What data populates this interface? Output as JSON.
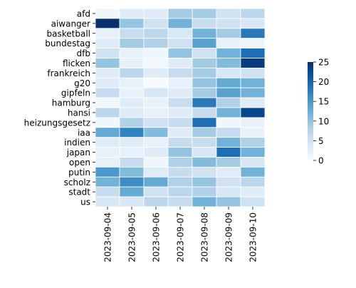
{
  "chart_data": {
    "type": "heatmap",
    "title": "",
    "xlabel": "",
    "ylabel": "",
    "x": [
      "2023-09-04",
      "2023-09-05",
      "2023-09-06",
      "2023-09-07",
      "2023-09-08",
      "2023-09-09",
      "2023-09-10"
    ],
    "y": [
      "afd",
      "aiwanger",
      "basketball",
      "bundestag",
      "dfb",
      "flicken",
      "frankreich",
      "g20",
      "gipfeln",
      "hamburg",
      "hansi",
      "heizungsgesetz",
      "iaa",
      "indien",
      "japan",
      "open",
      "putin",
      "scholz",
      "stadt",
      "us"
    ],
    "values": [
      [
        1,
        3,
        3,
        9,
        9,
        5,
        7
      ],
      [
        25,
        10,
        5,
        12,
        6,
        5,
        4
      ],
      [
        2,
        6,
        7,
        4,
        12,
        9,
        18
      ],
      [
        3,
        9,
        8,
        5,
        14,
        2,
        1
      ],
      [
        5,
        2,
        1,
        10,
        5,
        12,
        19
      ],
      [
        10,
        2,
        1,
        3,
        9,
        11,
        24
      ],
      [
        3,
        7,
        3,
        6,
        9,
        4,
        5
      ],
      [
        3,
        2,
        0,
        2,
        10,
        13,
        12
      ],
      [
        6,
        2,
        4,
        3,
        9,
        14,
        12
      ],
      [
        1,
        3,
        2,
        6,
        18,
        8,
        3
      ],
      [
        7,
        3,
        2,
        3,
        6,
        12,
        23
      ],
      [
        1,
        8,
        5,
        6,
        19,
        1,
        2
      ],
      [
        13,
        17,
        11,
        3,
        9,
        6,
        2
      ],
      [
        3,
        3,
        2,
        6,
        6,
        12,
        8
      ],
      [
        2,
        2,
        3,
        10,
        4,
        19,
        12
      ],
      [
        2,
        6,
        1,
        8,
        11,
        9,
        4
      ],
      [
        15,
        11,
        3,
        6,
        5,
        3,
        12
      ],
      [
        12,
        16,
        13,
        8,
        10,
        5,
        7
      ],
      [
        6,
        13,
        5,
        7,
        8,
        4,
        3
      ],
      [
        4,
        4,
        7,
        6,
        12,
        10,
        5
      ]
    ],
    "vmin": 0,
    "vmax": 25,
    "colormap": "Blues",
    "grid": true,
    "colorbar": {
      "ticks": [
        0,
        5,
        10,
        15,
        20,
        25
      ]
    }
  }
}
